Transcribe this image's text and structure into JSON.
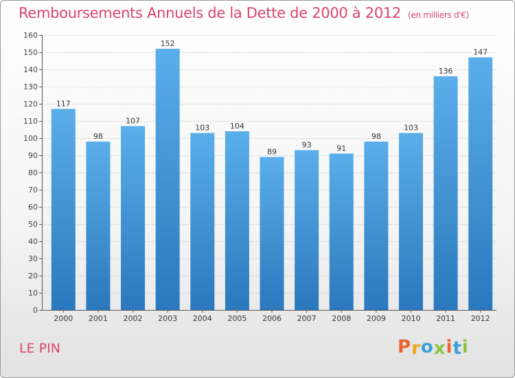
{
  "chart_data": {
    "type": "bar",
    "title": "Remboursements Annuels de la Dette de 2000 à 2012",
    "subtitle": "(en milliers d'€)",
    "categories": [
      "2000",
      "2001",
      "2002",
      "2003",
      "2004",
      "2005",
      "2006",
      "2007",
      "2008",
      "2009",
      "2010",
      "2011",
      "2012"
    ],
    "values": [
      117,
      98,
      107,
      152,
      103,
      104,
      89,
      93,
      91,
      98,
      103,
      136,
      147
    ],
    "ylim": [
      0,
      160
    ],
    "yticks": [
      0,
      10,
      20,
      30,
      40,
      50,
      60,
      70,
      80,
      90,
      100,
      110,
      120,
      130,
      140,
      150,
      160
    ],
    "grid": true,
    "bar_color": "#3d8fd3"
  },
  "footer": {
    "place": "LE PIN",
    "logo": "Proxiti",
    "logo_colors": [
      "#e8632b",
      "#f0a51a",
      "#3aa0d8",
      "#8cc63e",
      "#e8632b",
      "#3aa0d8",
      "#8cc63e"
    ]
  },
  "colors": {
    "title": "#d9436d"
  }
}
